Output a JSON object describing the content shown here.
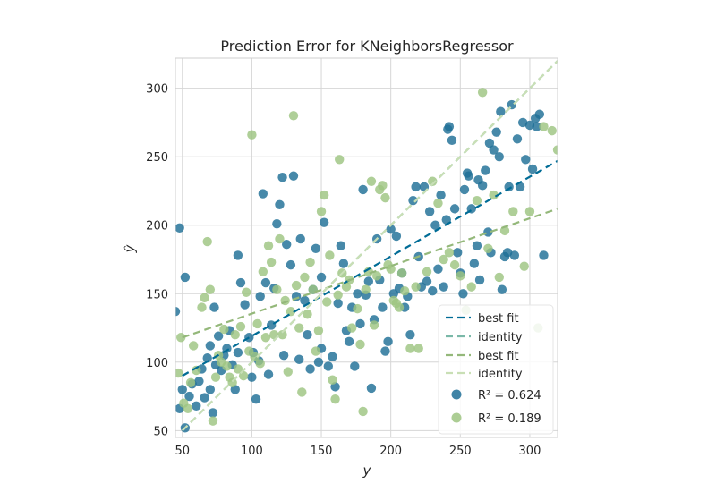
{
  "chart_data": {
    "type": "scatter",
    "title": "Prediction Error for KNeighborsRegressor",
    "xlabel": "y",
    "ylabel": "ŷ",
    "xlim": [
      45,
      320
    ],
    "ylim": [
      45,
      322
    ],
    "xticks": [
      50,
      100,
      150,
      200,
      250,
      300
    ],
    "yticks": [
      50,
      100,
      150,
      200,
      250,
      300
    ],
    "grid": true,
    "legend_placement": "lower-right",
    "colors": {
      "train_points": "#1f6f96",
      "test_points": "#9dc481",
      "train_best_fit": "#006c96",
      "train_identity": "#7ab8a8",
      "test_best_fit": "#94b87a",
      "test_identity": "#c9dfb5",
      "grid": "#d6d6d6",
      "frame": "#cfcfcf"
    },
    "legend": [
      {
        "label": "best fit",
        "kind": "line",
        "color_key": "train_best_fit"
      },
      {
        "label": "identity",
        "kind": "line",
        "color_key": "train_identity"
      },
      {
        "label": "best fit",
        "kind": "line",
        "color_key": "test_best_fit"
      },
      {
        "label": "identity",
        "kind": "line",
        "color_key": "test_identity"
      },
      {
        "label": "R² = 0.624",
        "kind": "point",
        "color_key": "train_points"
      },
      {
        "label": "R² = 0.189",
        "kind": "point",
        "color_key": "test_points"
      }
    ],
    "lines": [
      {
        "role": "train-best-fit",
        "color_key": "train_best_fit",
        "x": [
          50,
          320
        ],
        "y": [
          90,
          247
        ]
      },
      {
        "role": "train-identity",
        "color_key": "train_identity",
        "x": [
          50,
          320
        ],
        "y": [
          50,
          320
        ]
      },
      {
        "role": "test-best-fit",
        "color_key": "test_best_fit",
        "x": [
          50,
          320
        ],
        "y": [
          118,
          212
        ]
      },
      {
        "role": "test-identity",
        "color_key": "test_identity",
        "x": [
          50,
          320
        ],
        "y": [
          50,
          320
        ]
      }
    ],
    "series": [
      {
        "color_key": "train_points",
        "points": [
          [
            45,
            137
          ],
          [
            48,
            198
          ],
          [
            52,
            162
          ],
          [
            52,
            52
          ],
          [
            48,
            66
          ],
          [
            50,
            80
          ],
          [
            55,
            75
          ],
          [
            57,
            84
          ],
          [
            60,
            68
          ],
          [
            62,
            86
          ],
          [
            64,
            95
          ],
          [
            66,
            74
          ],
          [
            68,
            103
          ],
          [
            70,
            80
          ],
          [
            70,
            112
          ],
          [
            72,
            63
          ],
          [
            73,
            140
          ],
          [
            74,
            98
          ],
          [
            76,
            119
          ],
          [
            78,
            94
          ],
          [
            80,
            105
          ],
          [
            82,
            110
          ],
          [
            84,
            123
          ],
          [
            86,
            98
          ],
          [
            88,
            80
          ],
          [
            90,
            107
          ],
          [
            90,
            178
          ],
          [
            92,
            158
          ],
          [
            95,
            142
          ],
          [
            98,
            118
          ],
          [
            100,
            89
          ],
          [
            101,
            107
          ],
          [
            103,
            73
          ],
          [
            105,
            101
          ],
          [
            106,
            148
          ],
          [
            108,
            223
          ],
          [
            110,
            158
          ],
          [
            112,
            91
          ],
          [
            114,
            127
          ],
          [
            116,
            154
          ],
          [
            118,
            201
          ],
          [
            120,
            215
          ],
          [
            122,
            235
          ],
          [
            123,
            105
          ],
          [
            125,
            186
          ],
          [
            128,
            171
          ],
          [
            130,
            236
          ],
          [
            132,
            148
          ],
          [
            134,
            102
          ],
          [
            135,
            190
          ],
          [
            138,
            145
          ],
          [
            140,
            120
          ],
          [
            142,
            95
          ],
          [
            144,
            153
          ],
          [
            146,
            183
          ],
          [
            148,
            100
          ],
          [
            150,
            162
          ],
          [
            150,
            110
          ],
          [
            152,
            202
          ],
          [
            155,
            97
          ],
          [
            158,
            104
          ],
          [
            160,
            82
          ],
          [
            162,
            143
          ],
          [
            164,
            185
          ],
          [
            166,
            172
          ],
          [
            168,
            123
          ],
          [
            170,
            115
          ],
          [
            172,
            140
          ],
          [
            174,
            97
          ],
          [
            176,
            150
          ],
          [
            178,
            128
          ],
          [
            180,
            226
          ],
          [
            182,
            149
          ],
          [
            184,
            159
          ],
          [
            186,
            81
          ],
          [
            188,
            131
          ],
          [
            190,
            190
          ],
          [
            192,
            160
          ],
          [
            194,
            140
          ],
          [
            196,
            108
          ],
          [
            198,
            115
          ],
          [
            200,
            197
          ],
          [
            202,
            150
          ],
          [
            204,
            192
          ],
          [
            206,
            154
          ],
          [
            208,
            165
          ],
          [
            210,
            140
          ],
          [
            212,
            148
          ],
          [
            214,
            120
          ],
          [
            216,
            218
          ],
          [
            218,
            228
          ],
          [
            220,
            177
          ],
          [
            222,
            155
          ],
          [
            224,
            228
          ],
          [
            226,
            159
          ],
          [
            228,
            210
          ],
          [
            230,
            152
          ],
          [
            232,
            200
          ],
          [
            234,
            168
          ],
          [
            236,
            222
          ],
          [
            238,
            155
          ],
          [
            240,
            204
          ],
          [
            241,
            270
          ],
          [
            242,
            272
          ],
          [
            244,
            262
          ],
          [
            246,
            212
          ],
          [
            248,
            180
          ],
          [
            250,
            165
          ],
          [
            252,
            150
          ],
          [
            253,
            226
          ],
          [
            255,
            238
          ],
          [
            256,
            236
          ],
          [
            258,
            212
          ],
          [
            260,
            172
          ],
          [
            262,
            185
          ],
          [
            263,
            233
          ],
          [
            264,
            160
          ],
          [
            266,
            229
          ],
          [
            268,
            240
          ],
          [
            270,
            195
          ],
          [
            271,
            260
          ],
          [
            272,
            180
          ],
          [
            274,
            255
          ],
          [
            276,
            268
          ],
          [
            278,
            250
          ],
          [
            279,
            283
          ],
          [
            280,
            153
          ],
          [
            282,
            177
          ],
          [
            284,
            180
          ],
          [
            285,
            228
          ],
          [
            287,
            288
          ],
          [
            289,
            178
          ],
          [
            291,
            263
          ],
          [
            293,
            228
          ],
          [
            295,
            275
          ],
          [
            297,
            248
          ],
          [
            300,
            273
          ],
          [
            302,
            241
          ],
          [
            304,
            278
          ],
          [
            305,
            272
          ],
          [
            307,
            281
          ],
          [
            310,
            178
          ]
        ]
      },
      {
        "color_key": "test_points",
        "points": [
          [
            47,
            92
          ],
          [
            49,
            118
          ],
          [
            51,
            70
          ],
          [
            54,
            66
          ],
          [
            56,
            85
          ],
          [
            58,
            112
          ],
          [
            60,
            94
          ],
          [
            64,
            140
          ],
          [
            66,
            147
          ],
          [
            68,
            188
          ],
          [
            70,
            153
          ],
          [
            72,
            57
          ],
          [
            74,
            89
          ],
          [
            76,
            105
          ],
          [
            78,
            100
          ],
          [
            80,
            124
          ],
          [
            82,
            97
          ],
          [
            84,
            89
          ],
          [
            86,
            85
          ],
          [
            88,
            120
          ],
          [
            90,
            95
          ],
          [
            92,
            126
          ],
          [
            94,
            90
          ],
          [
            96,
            151
          ],
          [
            98,
            108
          ],
          [
            100,
            266
          ],
          [
            102,
            104
          ],
          [
            104,
            128
          ],
          [
            106,
            99
          ],
          [
            108,
            166
          ],
          [
            110,
            118
          ],
          [
            112,
            185
          ],
          [
            114,
            173
          ],
          [
            116,
            120
          ],
          [
            118,
            153
          ],
          [
            120,
            190
          ],
          [
            122,
            120
          ],
          [
            124,
            145
          ],
          [
            126,
            93
          ],
          [
            128,
            137
          ],
          [
            130,
            280
          ],
          [
            132,
            156
          ],
          [
            134,
            125
          ],
          [
            136,
            78
          ],
          [
            138,
            162
          ],
          [
            140,
            135
          ],
          [
            142,
            173
          ],
          [
            144,
            153
          ],
          [
            146,
            108
          ],
          [
            148,
            123
          ],
          [
            150,
            210
          ],
          [
            152,
            222
          ],
          [
            154,
            144
          ],
          [
            156,
            178
          ],
          [
            158,
            87
          ],
          [
            160,
            73
          ],
          [
            162,
            149
          ],
          [
            163,
            248
          ],
          [
            165,
            165
          ],
          [
            168,
            155
          ],
          [
            170,
            160
          ],
          [
            172,
            125
          ],
          [
            176,
            139
          ],
          [
            178,
            113
          ],
          [
            180,
            64
          ],
          [
            182,
            153
          ],
          [
            184,
            166
          ],
          [
            186,
            232
          ],
          [
            188,
            127
          ],
          [
            190,
            163
          ],
          [
            192,
            226
          ],
          [
            194,
            229
          ],
          [
            196,
            220
          ],
          [
            198,
            171
          ],
          [
            200,
            168
          ],
          [
            202,
            145
          ],
          [
            204,
            143
          ],
          [
            206,
            140
          ],
          [
            208,
            165
          ],
          [
            210,
            152
          ],
          [
            214,
            110
          ],
          [
            218,
            155
          ],
          [
            220,
            110
          ],
          [
            226,
            166
          ],
          [
            230,
            232
          ],
          [
            234,
            216
          ],
          [
            238,
            175
          ],
          [
            242,
            180
          ],
          [
            246,
            171
          ],
          [
            250,
            163
          ],
          [
            254,
            138
          ],
          [
            258,
            155
          ],
          [
            262,
            218
          ],
          [
            266,
            297
          ],
          [
            270,
            183
          ],
          [
            274,
            222
          ],
          [
            278,
            162
          ],
          [
            282,
            196
          ],
          [
            288,
            210
          ],
          [
            296,
            170
          ],
          [
            300,
            210
          ],
          [
            306,
            125
          ],
          [
            310,
            272
          ],
          [
            316,
            269
          ],
          [
            320,
            255
          ]
        ]
      }
    ]
  }
}
